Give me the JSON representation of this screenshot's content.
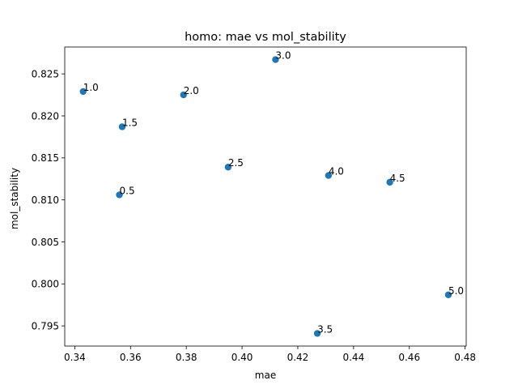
{
  "chart_data": {
    "type": "scatter",
    "title": "homo: mae vs mol_stability",
    "xlabel": "mae",
    "ylabel": "mol_stability",
    "xlim": [
      0.3364,
      0.4804
    ],
    "ylim": [
      0.7926,
      0.8282
    ],
    "xticks": [
      0.34,
      0.36,
      0.38,
      0.4,
      0.42,
      0.44,
      0.46,
      0.48
    ],
    "xtick_labels": [
      "0.34",
      "0.36",
      "0.38",
      "0.40",
      "0.42",
      "0.44",
      "0.46",
      "0.48"
    ],
    "yticks": [
      0.795,
      0.8,
      0.805,
      0.81,
      0.815,
      0.82,
      0.825
    ],
    "ytick_labels": [
      "0.795",
      "0.800",
      "0.805",
      "0.810",
      "0.815",
      "0.820",
      "0.825"
    ],
    "grid": false,
    "marker_color": "#1f77b4",
    "points": [
      {
        "label": "0.5",
        "x": 0.356,
        "y": 0.8106
      },
      {
        "label": "1.0",
        "x": 0.343,
        "y": 0.8229
      },
      {
        "label": "1.5",
        "x": 0.357,
        "y": 0.8187
      },
      {
        "label": "2.0",
        "x": 0.379,
        "y": 0.8225
      },
      {
        "label": "2.5",
        "x": 0.395,
        "y": 0.8139
      },
      {
        "label": "3.0",
        "x": 0.412,
        "y": 0.8267
      },
      {
        "label": "3.5",
        "x": 0.427,
        "y": 0.7941
      },
      {
        "label": "4.0",
        "x": 0.431,
        "y": 0.8129
      },
      {
        "label": "4.5",
        "x": 0.453,
        "y": 0.8121
      },
      {
        "label": "5.0",
        "x": 0.474,
        "y": 0.7987
      }
    ]
  }
}
